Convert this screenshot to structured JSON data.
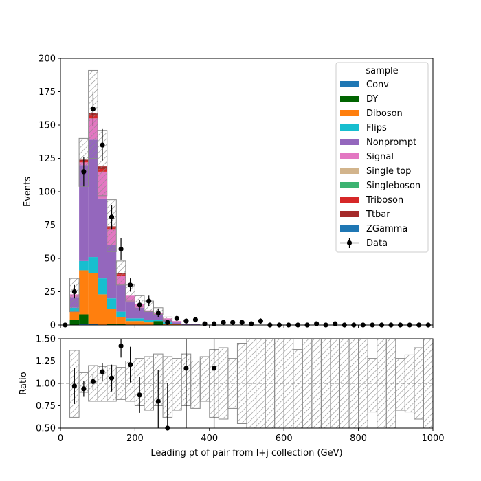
{
  "chart_data": [
    {
      "type": "bar",
      "stacked": true,
      "title": "",
      "ylabel": "Events",
      "xlim": [
        0,
        1000
      ],
      "ylim": [
        0,
        200
      ],
      "yticks": [
        0,
        25,
        50,
        75,
        100,
        125,
        150,
        175,
        200
      ],
      "bin_width": 25,
      "legend": {
        "title": "sample",
        "placement": "top-right",
        "data_label": "Data"
      },
      "bin_edges_start": [
        0,
        25,
        50,
        75,
        100,
        125,
        150,
        175,
        200,
        225,
        250,
        275,
        300,
        325,
        350,
        375
      ],
      "series": [
        {
          "name": "Conv",
          "color": "#1f77b4",
          "values": [
            0,
            0,
            1,
            1,
            0,
            0,
            0,
            0,
            0,
            0,
            0,
            0,
            0,
            0,
            0,
            0
          ]
        },
        {
          "name": "DY",
          "color": "#006400",
          "values": [
            0,
            4,
            7,
            0,
            0,
            1,
            1,
            0,
            0,
            0,
            3,
            0,
            0,
            0,
            0,
            0
          ]
        },
        {
          "name": "Diboson",
          "color": "#ff7f0e",
          "values": [
            0,
            6,
            33,
            38,
            23,
            11,
            5,
            3,
            3,
            2,
            0,
            1,
            1,
            0,
            0,
            0
          ]
        },
        {
          "name": "Flips",
          "color": "#17becf",
          "values": [
            0,
            3,
            7,
            12,
            12,
            8,
            4,
            2,
            2,
            2,
            1,
            1,
            0,
            0,
            0,
            0
          ]
        },
        {
          "name": "Nonprompt",
          "color": "#9467bd",
          "values": [
            0,
            8,
            72,
            88,
            60,
            40,
            20,
            12,
            8,
            6,
            4,
            2,
            1,
            1,
            1,
            0
          ]
        },
        {
          "name": "Signal",
          "color": "#e377c2",
          "values": [
            0,
            2,
            2,
            16,
            20,
            12,
            7,
            5,
            3,
            1,
            1,
            1,
            1,
            0,
            0,
            0
          ]
        },
        {
          "name": "Single top",
          "color": "#d2b48c",
          "values": [
            0,
            0,
            0,
            0,
            0,
            0,
            0,
            0,
            0,
            0,
            0,
            0,
            0,
            0,
            0,
            0
          ]
        },
        {
          "name": "Singleboson",
          "color": "#3cb371",
          "values": [
            0,
            0,
            0,
            0,
            0,
            0,
            0,
            0,
            0,
            0,
            0,
            0,
            0,
            0,
            0,
            0
          ]
        },
        {
          "name": "Triboson",
          "color": "#d62728",
          "values": [
            0,
            0,
            1,
            2,
            2,
            1,
            1,
            0,
            0,
            0,
            0,
            0,
            0,
            0,
            0,
            0
          ]
        },
        {
          "name": "Ttbar",
          "color": "#a52a2a",
          "values": [
            0,
            0,
            1,
            2,
            2,
            1,
            1,
            0,
            0,
            0,
            0,
            0,
            0,
            0,
            0,
            0
          ]
        },
        {
          "name": "ZGamma",
          "color": "#1f77b4",
          "values": [
            0,
            0,
            0,
            0,
            0,
            0,
            0,
            0,
            0,
            0,
            0,
            0,
            0,
            0,
            0,
            0
          ]
        }
      ],
      "uncertainty_band": {
        "x": [
          25,
          50,
          75,
          100,
          125,
          150,
          175,
          200,
          225,
          250,
          275
        ],
        "low": [
          10,
          104,
          125,
          97,
          55,
          30,
          18,
          12,
          10,
          8,
          3
        ],
        "high": [
          35,
          140,
          191,
          146,
          94,
          48,
          30,
          22,
          18,
          13,
          6
        ]
      },
      "data_points": {
        "x": [
          12.5,
          37.5,
          62.5,
          87.5,
          112.5,
          137.5,
          162.5,
          187.5,
          212.5,
          237.5,
          262.5,
          287.5,
          312.5,
          337.5,
          362.5,
          387.5,
          412.5,
          437.5,
          462.5,
          487.5,
          512.5,
          537.5,
          562.5,
          587.5,
          612.5,
          637.5,
          662.5,
          687.5,
          712.5,
          737.5,
          762.5,
          787.5,
          812.5,
          837.5,
          862.5,
          887.5,
          912.5,
          937.5,
          962.5,
          987.5
        ],
        "y": [
          0,
          25,
          115,
          162,
          135,
          81,
          57,
          30,
          15,
          18,
          9,
          2,
          5,
          3,
          4,
          1,
          1,
          2,
          2,
          2,
          1,
          3,
          0,
          0,
          0,
          0,
          0,
          1,
          0,
          1,
          0,
          0,
          0,
          0,
          0,
          0,
          0,
          0,
          0,
          0
        ],
        "err": [
          0,
          5,
          11,
          13,
          12,
          9,
          8,
          5,
          4,
          4,
          3,
          1,
          2,
          2,
          2,
          1,
          1,
          1,
          1,
          1,
          1,
          2,
          0,
          0,
          0,
          0,
          0,
          1,
          0,
          1,
          0,
          0,
          0,
          0,
          0,
          0,
          0,
          0,
          0,
          0
        ]
      }
    },
    {
      "type": "scatter",
      "title": "",
      "xlabel": "Leading pt of pair from l+j collection (GeV)",
      "ylabel": "Ratio",
      "xlim": [
        0,
        1000
      ],
      "ylim": [
        0.5,
        1.5
      ],
      "xticks": [
        0,
        200,
        400,
        600,
        800,
        1000
      ],
      "yticks": [
        0.5,
        0.75,
        1.0,
        1.25,
        1.5
      ],
      "ytick_labels": [
        "0.50",
        "0.75",
        "1.00",
        "1.25",
        "1.50"
      ],
      "reference_line": 1.0,
      "uncertainty_band": {
        "x": [
          25,
          50,
          75,
          100,
          125,
          150,
          175,
          200,
          225,
          250,
          275,
          300,
          325,
          350,
          375,
          400,
          425,
          450,
          475,
          500,
          525,
          550,
          575,
          600,
          625,
          650,
          675,
          700,
          725,
          750,
          775,
          800,
          825,
          850,
          875,
          900,
          925,
          950,
          975
        ],
        "low": [
          0.62,
          0.9,
          0.8,
          0.8,
          0.8,
          0.82,
          0.8,
          0.75,
          0.7,
          0.75,
          0.62,
          0.7,
          0.75,
          0.72,
          0.8,
          0.62,
          0.6,
          0.72,
          0.55,
          0.5,
          0.5,
          0.5,
          0.5,
          0.5,
          0.5,
          0.5,
          0.5,
          0.5,
          0.5,
          0.5,
          0.5,
          0.5,
          0.68,
          0.5,
          0.5,
          0.7,
          0.68,
          0.6,
          0.5
        ],
        "high": [
          1.37,
          1.12,
          1.2,
          1.19,
          1.2,
          1.18,
          1.25,
          1.28,
          1.3,
          1.33,
          1.3,
          1.28,
          1.33,
          1.25,
          1.3,
          1.38,
          1.4,
          1.28,
          1.45,
          1.5,
          1.5,
          1.5,
          1.5,
          1.5,
          1.38,
          1.5,
          1.5,
          1.5,
          1.5,
          1.5,
          1.5,
          1.5,
          1.28,
          1.5,
          1.5,
          1.28,
          1.32,
          1.4,
          1.5
        ]
      },
      "points": {
        "x": [
          37.5,
          62.5,
          87.5,
          112.5,
          137.5,
          162.5,
          187.5,
          212.5,
          262.5,
          287.5,
          337.5,
          412.5
        ],
        "y": [
          0.97,
          0.94,
          1.02,
          1.13,
          1.06,
          1.42,
          1.21,
          0.87,
          0.8,
          0.5,
          1.17,
          1.17
        ],
        "err": [
          0.2,
          0.09,
          0.09,
          0.1,
          0.15,
          0.13,
          0.2,
          0.2,
          0.35,
          0.5,
          0.7,
          1.0
        ]
      }
    }
  ]
}
